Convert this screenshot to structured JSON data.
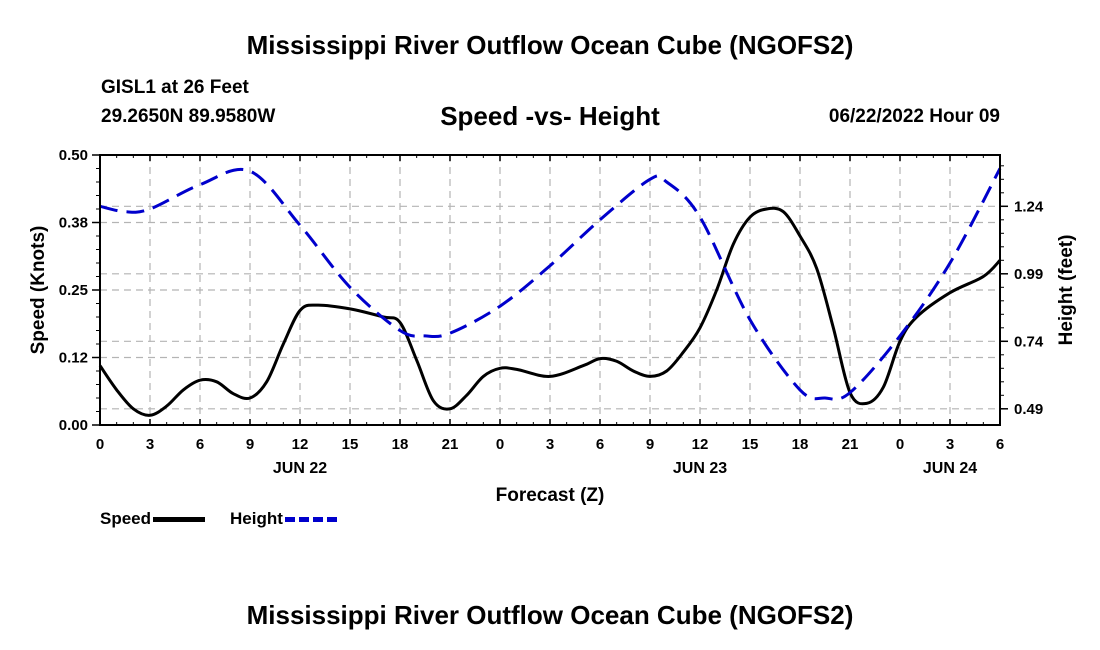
{
  "page": {
    "title": "Mississippi River Outflow Ocean Cube (NGOFS2)",
    "station": "GISL1 at 26 Feet",
    "coords": "29.2650N  89.9580W",
    "chart_title": "Speed -vs- Height",
    "datetime": "06/22/2022 Hour 09",
    "footer_title": "Mississippi River Outflow Ocean Cube (NGOFS2)"
  },
  "legend": {
    "speed_label": "Speed",
    "height_label": "Height"
  },
  "colors": {
    "speed": "#000000",
    "height": "#0000cc",
    "grid": "#b4b4b4"
  },
  "chart_data": {
    "type": "line",
    "title": "Speed -vs- Height",
    "xlabel": "Forecast (Z)",
    "ylabel": "Speed (Knots)",
    "y2label": "Height (feet)",
    "x_range_hours": [
      0,
      54
    ],
    "x_ticks": [
      {
        "hour": 0,
        "label": "0"
      },
      {
        "hour": 3,
        "label": "3"
      },
      {
        "hour": 6,
        "label": "6"
      },
      {
        "hour": 9,
        "label": "9"
      },
      {
        "hour": 12,
        "label": "12"
      },
      {
        "hour": 15,
        "label": "15"
      },
      {
        "hour": 18,
        "label": "18"
      },
      {
        "hour": 21,
        "label": "21"
      },
      {
        "hour": 24,
        "label": "0"
      },
      {
        "hour": 27,
        "label": "3"
      },
      {
        "hour": 30,
        "label": "6"
      },
      {
        "hour": 33,
        "label": "9"
      },
      {
        "hour": 36,
        "label": "12"
      },
      {
        "hour": 39,
        "label": "15"
      },
      {
        "hour": 42,
        "label": "18"
      },
      {
        "hour": 45,
        "label": "21"
      },
      {
        "hour": 48,
        "label": "0"
      },
      {
        "hour": 51,
        "label": "3"
      },
      {
        "hour": 54,
        "label": "6"
      }
    ],
    "date_labels": [
      {
        "hour": 12,
        "label": "JUN 22"
      },
      {
        "hour": 36,
        "label": "JUN 23"
      },
      {
        "hour": 51,
        "label": "JUN 24"
      }
    ],
    "ylim": [
      0,
      0.5
    ],
    "y_ticks": [
      0.0,
      0.125,
      0.25,
      0.375,
      0.5
    ],
    "y_tick_labels": [
      "0.00",
      "0.12",
      "0.25",
      "0.38",
      "0.50"
    ],
    "y2lim": [
      0.43,
      1.43
    ],
    "y2_ticks": [
      0.49,
      0.74,
      0.99,
      1.24
    ],
    "y2_tick_labels": [
      "0.49",
      "0.74",
      "0.99",
      "1.24"
    ],
    "series": [
      {
        "name": "Speed",
        "axis": "left",
        "style": "solid",
        "x": [
          0,
          1,
          2,
          3,
          4,
          5,
          6,
          7,
          8,
          9,
          10,
          11,
          12,
          13,
          15,
          17,
          18,
          19,
          20,
          21,
          22,
          23,
          24,
          25,
          27,
          29,
          30,
          31,
          32,
          33,
          34,
          35,
          36,
          37,
          38,
          39,
          40,
          41,
          42,
          43,
          44,
          45,
          46,
          47,
          48,
          49,
          51,
          53,
          54
        ],
        "values": [
          0.11,
          0.065,
          0.03,
          0.018,
          0.035,
          0.065,
          0.083,
          0.08,
          0.058,
          0.05,
          0.08,
          0.15,
          0.212,
          0.222,
          0.215,
          0.2,
          0.19,
          0.12,
          0.045,
          0.03,
          0.055,
          0.09,
          0.105,
          0.103,
          0.09,
          0.11,
          0.123,
          0.118,
          0.1,
          0.09,
          0.1,
          0.135,
          0.18,
          0.25,
          0.335,
          0.385,
          0.4,
          0.395,
          0.35,
          0.29,
          0.18,
          0.06,
          0.04,
          0.07,
          0.155,
          0.2,
          0.245,
          0.275,
          0.305
        ]
      },
      {
        "name": "Height",
        "axis": "right",
        "style": "dashed",
        "x": [
          0,
          1.5,
          3,
          6,
          9,
          12,
          15,
          18,
          19.5,
          21,
          24,
          27,
          30,
          33,
          34,
          36,
          39,
          42,
          43.5,
          45,
          48,
          51,
          54
        ],
        "values": [
          1.24,
          1.22,
          1.23,
          1.32,
          1.37,
          1.17,
          0.94,
          0.78,
          0.76,
          0.77,
          0.87,
          1.02,
          1.19,
          1.34,
          1.33,
          1.2,
          0.82,
          0.56,
          0.53,
          0.55,
          0.76,
          1.03,
          1.38
        ]
      }
    ]
  }
}
